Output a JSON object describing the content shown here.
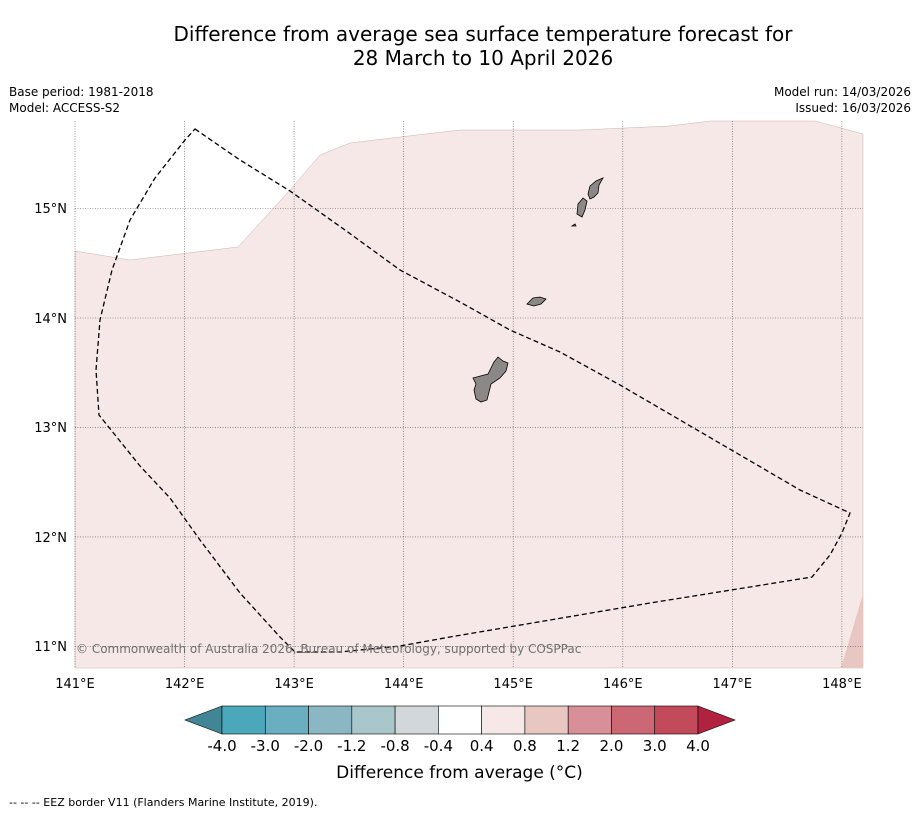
{
  "title": {
    "line1": "Difference from average sea surface temperature forecast for",
    "line2": "28 March to 10 April 2026"
  },
  "meta": {
    "base_period": "Base period: 1981-2018",
    "model": "Model: ACCESS-S2",
    "model_run": "Model run: 14/03/2026",
    "issued": "Issued: 16/03/2026"
  },
  "map": {
    "lon_range": [
      141,
      148.2
    ],
    "lat_range": [
      10.8,
      15.8
    ],
    "lon_ticks": [
      "141°E",
      "142°E",
      "143°E",
      "144°E",
      "145°E",
      "146°E",
      "147°E",
      "148°E"
    ],
    "lat_ticks": [
      "15°N",
      "14°N",
      "13°N",
      "12°N",
      "11°N"
    ],
    "copyright": "© Commonwealth of Australia 2026, Bureau of Meteorology, supported by COSPPac",
    "colors": {
      "anomaly_0_4_0_8": "#f5e8e6",
      "anomaly_0_8_1_2": "#e8c6c2",
      "land": "#8c8888",
      "no_data": "#ffffff"
    }
  },
  "colorbar": {
    "tick_labels": [
      "-4.0",
      "-3.0",
      "-2.0",
      "-1.2",
      "-0.8",
      "-0.4",
      "0.4",
      "0.8",
      "1.2",
      "2.0",
      "3.0",
      "4.0"
    ],
    "colors": [
      "#4aa8ba",
      "#6aafbf",
      "#8ab7c3",
      "#a9c6cb",
      "#d2d7da",
      "#ffffff",
      "#f5e8e6",
      "#e8c6c2",
      "#d88f98",
      "#cc6874",
      "#c24a5a"
    ],
    "under_color": "#418694",
    "over_color": "#b0223e",
    "title": "Difference from average (°C)"
  },
  "footnote": "--  --  -- EEZ border V11 (Flanders Marine Institute, 2019)."
}
